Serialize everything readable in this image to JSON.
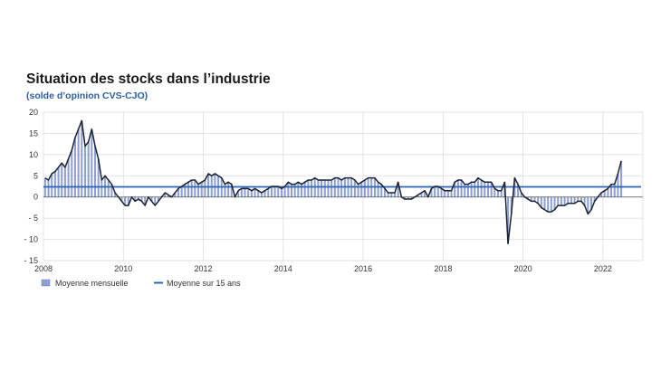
{
  "chart_data": {
    "type": "bar",
    "title": "Situation des stocks dans l’industrie",
    "subtitle": "(solde d’opinion CVS-CJO)",
    "xlabel": "",
    "ylabel": "",
    "ylim": [
      -15,
      20
    ],
    "y_ticks": [
      "20",
      "15",
      "10",
      "5",
      "0",
      "- 5",
      "- 10",
      "- 15"
    ],
    "y_tick_values": [
      20,
      15,
      10,
      5,
      0,
      -5,
      -10,
      -15
    ],
    "x_ticks": [
      "2008",
      "2010",
      "2012",
      "2014",
      "2016",
      "2018",
      "2020",
      "2022"
    ],
    "x_tick_values": [
      2008,
      2010,
      2012,
      2014,
      2016,
      2018,
      2020,
      2022
    ],
    "x_start": "2008-01",
    "frequency": "monthly",
    "grid": true,
    "legend_position": "bottom-left",
    "series": [
      {
        "name": "Moyenne mensuelle",
        "style": "bar",
        "color": "#8e9fd3",
        "values": [
          4.5,
          4,
          5.5,
          6,
          7,
          8,
          7,
          9,
          11,
          14,
          16,
          18,
          12,
          13,
          16,
          12,
          9,
          4,
          5,
          4,
          3,
          1,
          0,
          -1,
          -2,
          -2,
          0,
          -1,
          -0.5,
          -1,
          -2,
          0,
          -1,
          -2,
          -1,
          0,
          1,
          0.5,
          0,
          1,
          2,
          2.5,
          3,
          3.5,
          4,
          4,
          3,
          3.5,
          4,
          5.5,
          5,
          5.5,
          5,
          4.5,
          3,
          3.5,
          3,
          0,
          1.5,
          2,
          2,
          2,
          1.5,
          2,
          1.5,
          1,
          1.5,
          2,
          2.5,
          2.5,
          2.5,
          2,
          2.5,
          3.5,
          3,
          3,
          3.5,
          3,
          3.5,
          4,
          4,
          4.5,
          4,
          4,
          4,
          4,
          4,
          4.5,
          4.5,
          4,
          4.5,
          4.5,
          4.5,
          4,
          3,
          3.5,
          4,
          4.5,
          4.5,
          4.5,
          3.5,
          3,
          2,
          1,
          1,
          1,
          3.5,
          0,
          -0.5,
          -0.5,
          -0.5,
          0,
          0.5,
          1,
          1.5,
          0,
          2,
          2.5,
          2.5,
          2,
          1.5,
          1.5,
          1.5,
          3.5,
          4,
          4,
          3,
          3,
          3.5,
          3.5,
          4.5,
          4,
          3.5,
          3.5,
          3.5,
          2,
          1.5,
          1.5,
          3.5,
          -11,
          -4,
          4.5,
          3,
          1,
          0,
          -0.5,
          -1,
          -1,
          -1.5,
          -2.5,
          -3,
          -3.5,
          -3.5,
          -3,
          -2,
          -2,
          -2,
          -1.5,
          -1.5,
          -1.5,
          -1,
          -1,
          -2,
          -4,
          -3,
          -1,
          0,
          1,
          1.5,
          2,
          3,
          3,
          5.5,
          8.5
        ]
      },
      {
        "name": "Moyenne sur 15 ans",
        "style": "line",
        "color": "#2e63b4",
        "value": 2.4
      }
    ],
    "monthly_line_color": "#1b2230"
  },
  "legend": {
    "bar_label": "Moyenne mensuelle",
    "line_label": "Moyenne sur 15 ans"
  }
}
